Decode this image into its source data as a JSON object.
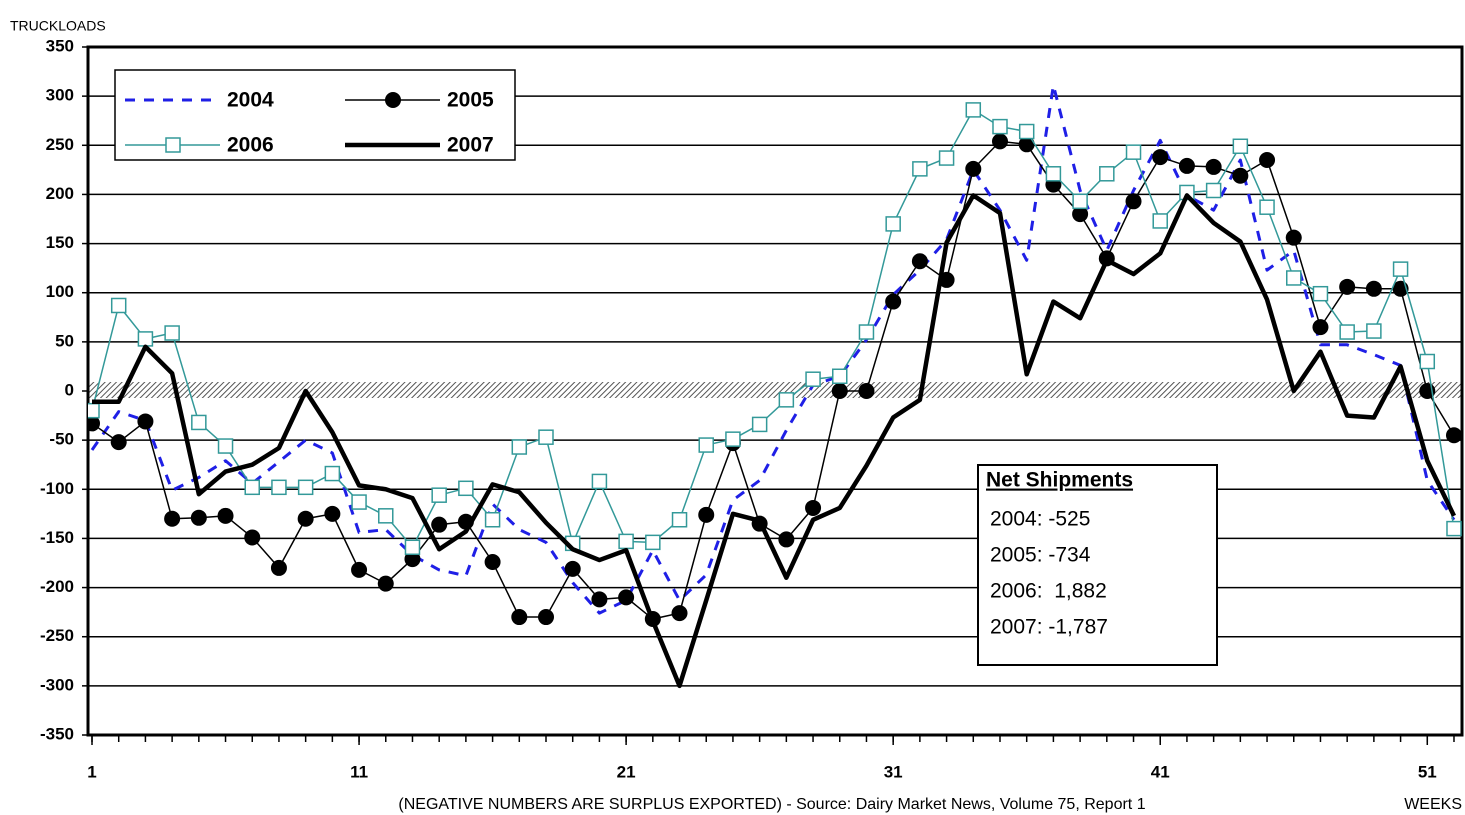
{
  "chart_data": {
    "type": "line",
    "y_label": "TRUCKLOADS",
    "x_label": "WEEKS",
    "footnote": "(NEGATIVE NUMBERS ARE SURPLUS EXPORTED) - Source: Dairy Market News, Volume 75, Report 1",
    "x": [
      1,
      2,
      3,
      4,
      5,
      6,
      7,
      8,
      9,
      10,
      11,
      12,
      13,
      14,
      15,
      16,
      17,
      18,
      19,
      20,
      21,
      22,
      23,
      24,
      25,
      26,
      27,
      28,
      29,
      30,
      31,
      32,
      33,
      34,
      35,
      36,
      37,
      38,
      39,
      40,
      41,
      42,
      43,
      44,
      45,
      46,
      47,
      48,
      49,
      50,
      51,
      52
    ],
    "xlim": [
      0.85,
      52.3
    ],
    "xticks": [
      1,
      11,
      21,
      31,
      41,
      51
    ],
    "ylim": [
      -350,
      350
    ],
    "yticks": [
      -350,
      -300,
      -250,
      -200,
      -150,
      -100,
      -50,
      0,
      50,
      100,
      150,
      200,
      250,
      300,
      350
    ],
    "grid": true,
    "legend": "upper left",
    "series": [
      {
        "name": "2004",
        "color": "#1f1fe6",
        "line_style": "dashed",
        "line_width": 3,
        "marker": null,
        "values": [
          -60,
          -21,
          -30,
          -101,
          -88,
          -71,
          -94,
          -72,
          -50,
          -63,
          -144,
          -141,
          -167,
          -182,
          -188,
          -115,
          -141,
          -154,
          -195,
          -226,
          -213,
          -162,
          -213,
          -187,
          -111,
          -91,
          -40,
          6,
          15,
          52,
          98,
          123,
          154,
          225,
          184,
          133,
          311,
          204,
          143,
          204,
          255,
          199,
          184,
          235,
          123,
          143,
          47,
          47,
          37,
          26,
          -91,
          -131
        ]
      },
      {
        "name": "2005",
        "color": "#000000",
        "line_style": "solid",
        "line_width": 1.5,
        "marker": "circle",
        "values": [
          -33,
          -52,
          -31,
          -130,
          -129,
          -127,
          -149,
          -180,
          -130,
          -125,
          -182,
          -196,
          -171,
          -136,
          -133,
          -174,
          -230,
          -230,
          -181,
          -212,
          -210,
          -232,
          -226,
          -126,
          -53,
          -135,
          -151,
          -119,
          0,
          0,
          91,
          132,
          113,
          226,
          254,
          251,
          210,
          180,
          135,
          193,
          238,
          229,
          228,
          219,
          235,
          156,
          65,
          106,
          104,
          104,
          0,
          -45
        ]
      },
      {
        "name": "2006",
        "color": "#339999",
        "line_style": "solid",
        "line_width": 1.5,
        "marker": "square",
        "values": [
          -20,
          87,
          53,
          59,
          -32,
          -56,
          -98,
          -98,
          -98,
          -84,
          -113,
          -127,
          -159,
          -106,
          -99,
          -131,
          -57,
          -47,
          -155,
          -92,
          -153,
          -154,
          -131,
          -55,
          -49,
          -34,
          -9,
          12,
          15,
          60,
          170,
          226,
          237,
          286,
          269,
          264,
          221,
          193,
          221,
          243,
          173,
          202,
          204,
          249,
          187,
          115,
          99,
          60,
          61,
          124,
          30,
          -140
        ]
      },
      {
        "name": "2007",
        "color": "#000000",
        "line_style": "solid",
        "line_width": 4.5,
        "marker": null,
        "values": [
          -11,
          -11,
          45,
          18,
          -105,
          -82,
          -75,
          -58,
          0,
          -42,
          -96,
          -100,
          -109,
          -161,
          -143,
          -95,
          -103,
          -134,
          -161,
          -172,
          -162,
          -234,
          -300,
          -213,
          -125,
          -132,
          -190,
          -131,
          -119,
          -76,
          -27,
          -9,
          151,
          199,
          181,
          17,
          91,
          74,
          133,
          119,
          140,
          199,
          171,
          152,
          93,
          0,
          40,
          -25,
          -27,
          25,
          -71,
          -127
        ]
      }
    ],
    "annotation": {
      "title": "Net Shipments",
      "lines": [
        "2004: -525",
        "2005: -734",
        "2006:  1,882",
        "2007: -1,787"
      ]
    }
  }
}
